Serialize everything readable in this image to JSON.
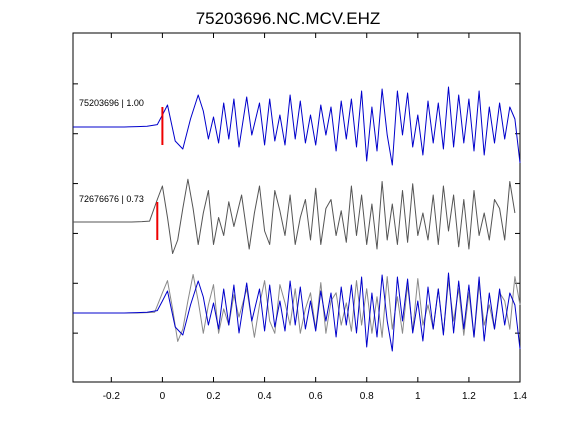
{
  "chart_data": {
    "type": "line",
    "title": "75203696.NC.MCV.EHZ",
    "xlim": [
      -0.35,
      1.4
    ],
    "xticks": [
      -0.2,
      0,
      0.2,
      0.4,
      0.6,
      0.8,
      1,
      1.2,
      1.4
    ],
    "xtick_labels": [
      "-0.2",
      "0",
      "0.2",
      "0.4",
      "0.6",
      "0.8",
      "1",
      "1.2",
      "1.4"
    ],
    "yticks_unlabeled": 6,
    "grid": false,
    "colors": {
      "blue": "#0000cc",
      "gray": "#555555",
      "lightgray": "#8a8a8a",
      "pick": "#ee0000"
    },
    "panels": [
      {
        "label": "75203696 | 1.00",
        "series": "blue",
        "pick_time": 0.0,
        "role": "master"
      },
      {
        "label": "72676676 | 0.73",
        "series": "gray",
        "pick_time": -0.02,
        "role": "correlated"
      },
      {
        "label": "",
        "series": "overlay",
        "role": "overlay of both traces"
      }
    ],
    "blue_trace": {
      "x": [
        -0.35,
        -0.3,
        -0.25,
        -0.2,
        -0.15,
        -0.1,
        -0.06,
        -0.02,
        0.0,
        0.02,
        0.05,
        0.08,
        0.11,
        0.14,
        0.16,
        0.18,
        0.2,
        0.22,
        0.24,
        0.26,
        0.28,
        0.3,
        0.33,
        0.35,
        0.38,
        0.4,
        0.42,
        0.44,
        0.46,
        0.48,
        0.5,
        0.52,
        0.54,
        0.56,
        0.58,
        0.6,
        0.62,
        0.64,
        0.66,
        0.68,
        0.7,
        0.72,
        0.74,
        0.76,
        0.78,
        0.8,
        0.82,
        0.84,
        0.86,
        0.88,
        0.9,
        0.92,
        0.94,
        0.96,
        0.98,
        1.0,
        1.02,
        1.04,
        1.06,
        1.08,
        1.1,
        1.12,
        1.14,
        1.16,
        1.18,
        1.2,
        1.22,
        1.24,
        1.26,
        1.28,
        1.3,
        1.32,
        1.34,
        1.36,
        1.38,
        1.4
      ],
      "y": [
        0,
        0,
        0,
        0,
        0,
        0.01,
        0.02,
        0.06,
        0.3,
        0.55,
        -0.35,
        -0.55,
        0.2,
        0.8,
        0.4,
        -0.3,
        0.25,
        -0.4,
        0.6,
        -0.3,
        0.7,
        -0.5,
        0.75,
        -0.2,
        0.6,
        -0.45,
        0.7,
        -0.35,
        0.3,
        -0.45,
        0.8,
        -0.3,
        0.65,
        -0.4,
        0.3,
        -0.45,
        0.55,
        -0.2,
        0.5,
        -0.6,
        0.65,
        -0.3,
        0.7,
        -0.5,
        0.9,
        -0.85,
        0.5,
        -0.6,
        0.95,
        -0.2,
        -0.95,
        0.9,
        -0.2,
        0.85,
        -0.5,
        0.3,
        -0.7,
        0.65,
        -0.4,
        0.6,
        -0.55,
        1.0,
        -0.5,
        0.8,
        -0.4,
        0.7,
        -0.6,
        0.9,
        -0.7,
        0.5,
        -0.4,
        0.6,
        -0.3,
        0.5,
        0.2,
        -0.9
      ]
    },
    "gray_trace": {
      "x": [
        -0.35,
        -0.3,
        -0.25,
        -0.2,
        -0.15,
        -0.1,
        -0.06,
        -0.03,
        0.0,
        0.02,
        0.04,
        0.06,
        0.08,
        0.1,
        0.12,
        0.14,
        0.16,
        0.18,
        0.2,
        0.22,
        0.24,
        0.26,
        0.28,
        0.3,
        0.33,
        0.36,
        0.38,
        0.4,
        0.42,
        0.44,
        0.46,
        0.48,
        0.5,
        0.52,
        0.54,
        0.56,
        0.58,
        0.6,
        0.62,
        0.64,
        0.66,
        0.68,
        0.7,
        0.72,
        0.74,
        0.76,
        0.78,
        0.8,
        0.82,
        0.84,
        0.86,
        0.88,
        0.9,
        0.92,
        0.94,
        0.96,
        0.98,
        1.0,
        1.02,
        1.04,
        1.06,
        1.08,
        1.1,
        1.12,
        1.14,
        1.16,
        1.18,
        1.2,
        1.22,
        1.24,
        1.26,
        1.28,
        1.3,
        1.32,
        1.34,
        1.36,
        1.38,
        1.4
      ],
      "y": [
        0,
        0,
        0,
        0,
        0,
        0,
        0.01,
        0.02,
        0.5,
        0.8,
        0.1,
        -0.7,
        -0.4,
        0.3,
        0.95,
        0.3,
        -0.5,
        0.2,
        0.7,
        -0.5,
        0.1,
        -0.3,
        0.45,
        -0.1,
        0.6,
        -0.6,
        0.2,
        0.8,
        -0.2,
        -0.5,
        0.7,
        0.25,
        -0.3,
        0.6,
        -0.5,
        0.1,
        0.5,
        -0.4,
        0.75,
        -0.5,
        0.3,
        0.5,
        -0.3,
        0.25,
        -0.45,
        0.8,
        -0.3,
        0.6,
        -0.5,
        0.4,
        -0.6,
        0.9,
        -0.4,
        0.4,
        -0.5,
        0.7,
        -0.45,
        0.85,
        -0.3,
        0.2,
        -0.4,
        0.6,
        -0.5,
        0.8,
        -0.2,
        0.6,
        -0.55,
        0.5,
        -0.6,
        0.7,
        -0.3,
        0.2,
        -0.4,
        0.5,
        0.3,
        -0.4,
        0.9,
        0.2
      ]
    }
  }
}
